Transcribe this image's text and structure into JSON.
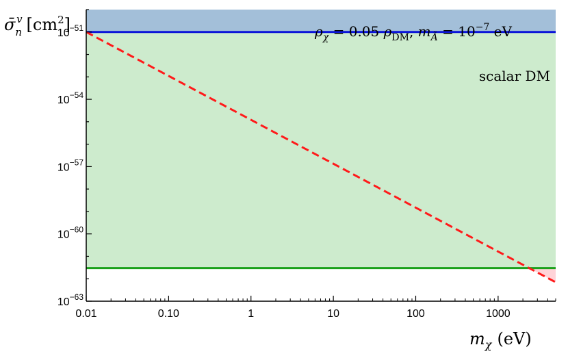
{
  "chart_data": {
    "type": "line",
    "xlabel": "m_χ (eV)",
    "ylabel": "σ̄_n^v [cm²]",
    "xscale": "log",
    "yscale": "log",
    "xlim": [
      0.01,
      5000
    ],
    "ylim": [
      1e-63,
      1e-50
    ],
    "x_ticks": [
      {
        "value": 0.01,
        "label": "0.01"
      },
      {
        "value": 0.1,
        "label": "0.10"
      },
      {
        "value": 1,
        "label": "1"
      },
      {
        "value": 10,
        "label": "10"
      },
      {
        "value": 100,
        "label": "100"
      },
      {
        "value": 1000,
        "label": "1000"
      }
    ],
    "y_ticks": [
      {
        "value": 1e-51,
        "base": "10",
        "exp": "−51"
      },
      {
        "value": 1e-54,
        "base": "10",
        "exp": "−54"
      },
      {
        "value": 1e-57,
        "base": "10",
        "exp": "−57"
      },
      {
        "value": 1e-60,
        "base": "10",
        "exp": "−60"
      },
      {
        "value": 1e-63,
        "base": "10",
        "exp": "−63"
      }
    ],
    "regions": [
      {
        "name": "excluded-top",
        "y_from": 1e-51,
        "y_to": 1e-50,
        "color": "#a3bfd9"
      },
      {
        "name": "green-band",
        "y_from": 3e-62,
        "y_to": 1e-51,
        "color": "#cdebcd"
      },
      {
        "name": "pink-triangle",
        "color": "#ffd3d8"
      }
    ],
    "series": [
      {
        "style": "solid",
        "color": "#0a14d8",
        "x": [
          0.01,
          5000
        ],
        "y": [
          1e-51,
          1e-51
        ]
      },
      {
        "style": "solid",
        "color": "#1aa01a",
        "x": [
          0.01,
          5000
        ],
        "y": [
          3e-62,
          3e-62
        ]
      },
      {
        "style": "dashed",
        "color": "#ff1a1a",
        "x": [
          0.01,
          5000
        ],
        "y": [
          1e-51,
          7e-63
        ]
      }
    ],
    "annotations": [
      {
        "text": "ρ_χ = 0.05 ρ_DM,  m_Ã = 10^−7 eV"
      },
      {
        "text": "scalar DM"
      }
    ]
  }
}
